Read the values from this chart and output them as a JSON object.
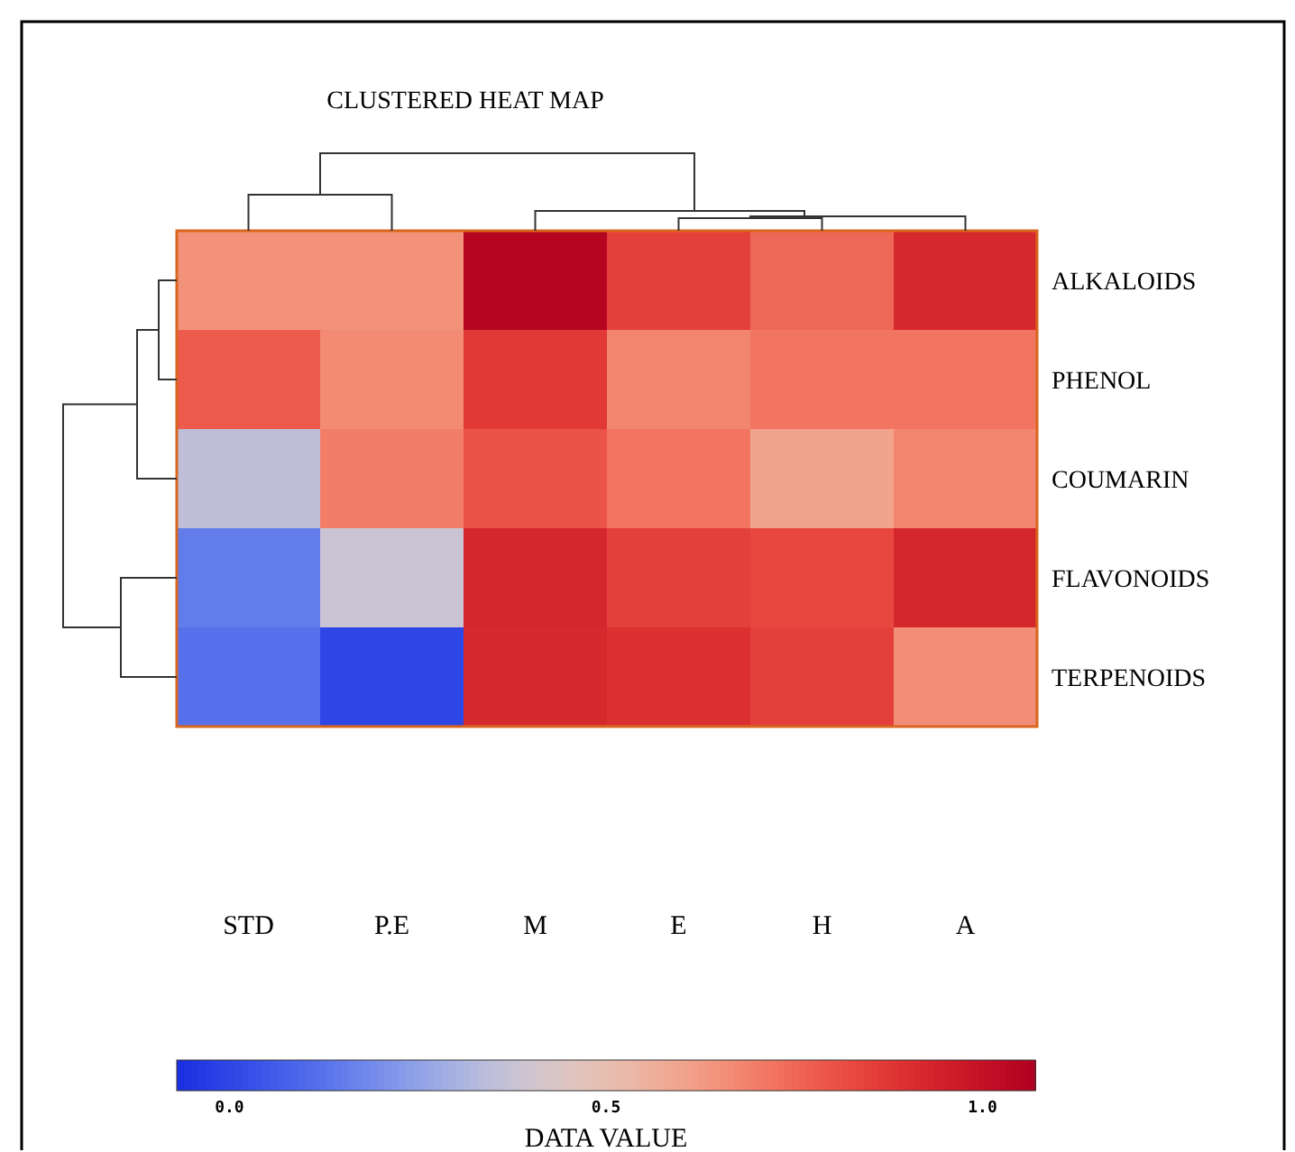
{
  "chart_data": {
    "type": "heatmap",
    "title": "CLUSTERED HEAT MAP",
    "clabel": "DATA VALUE",
    "categories": [
      "STD",
      "P.E",
      "M",
      "E",
      "H",
      "A"
    ],
    "y_categories": [
      "ALKALOIDS",
      "PHENOL",
      "COUMARIN",
      "FLAVONOIDS",
      "TERPENOIDS"
    ],
    "cells": [
      [
        0.65,
        0.65,
        1.05,
        0.85,
        0.75,
        0.92
      ],
      [
        0.78,
        0.67,
        0.87,
        0.68,
        0.72,
        0.72
      ],
      [
        0.35,
        0.7,
        0.8,
        0.72,
        0.6,
        0.68
      ],
      [
        0.15,
        0.38,
        0.93,
        0.85,
        0.83,
        0.93
      ],
      [
        0.12,
        0.0,
        0.92,
        0.9,
        0.85,
        0.66
      ]
    ],
    "clim": [
      -0.07,
      1.07
    ],
    "cticks": [
      {
        "value": 0,
        "label": "0.0"
      },
      {
        "value": 0.5,
        "label": "0.5"
      },
      {
        "value": 1,
        "label": "1.0"
      }
    ]
  }
}
